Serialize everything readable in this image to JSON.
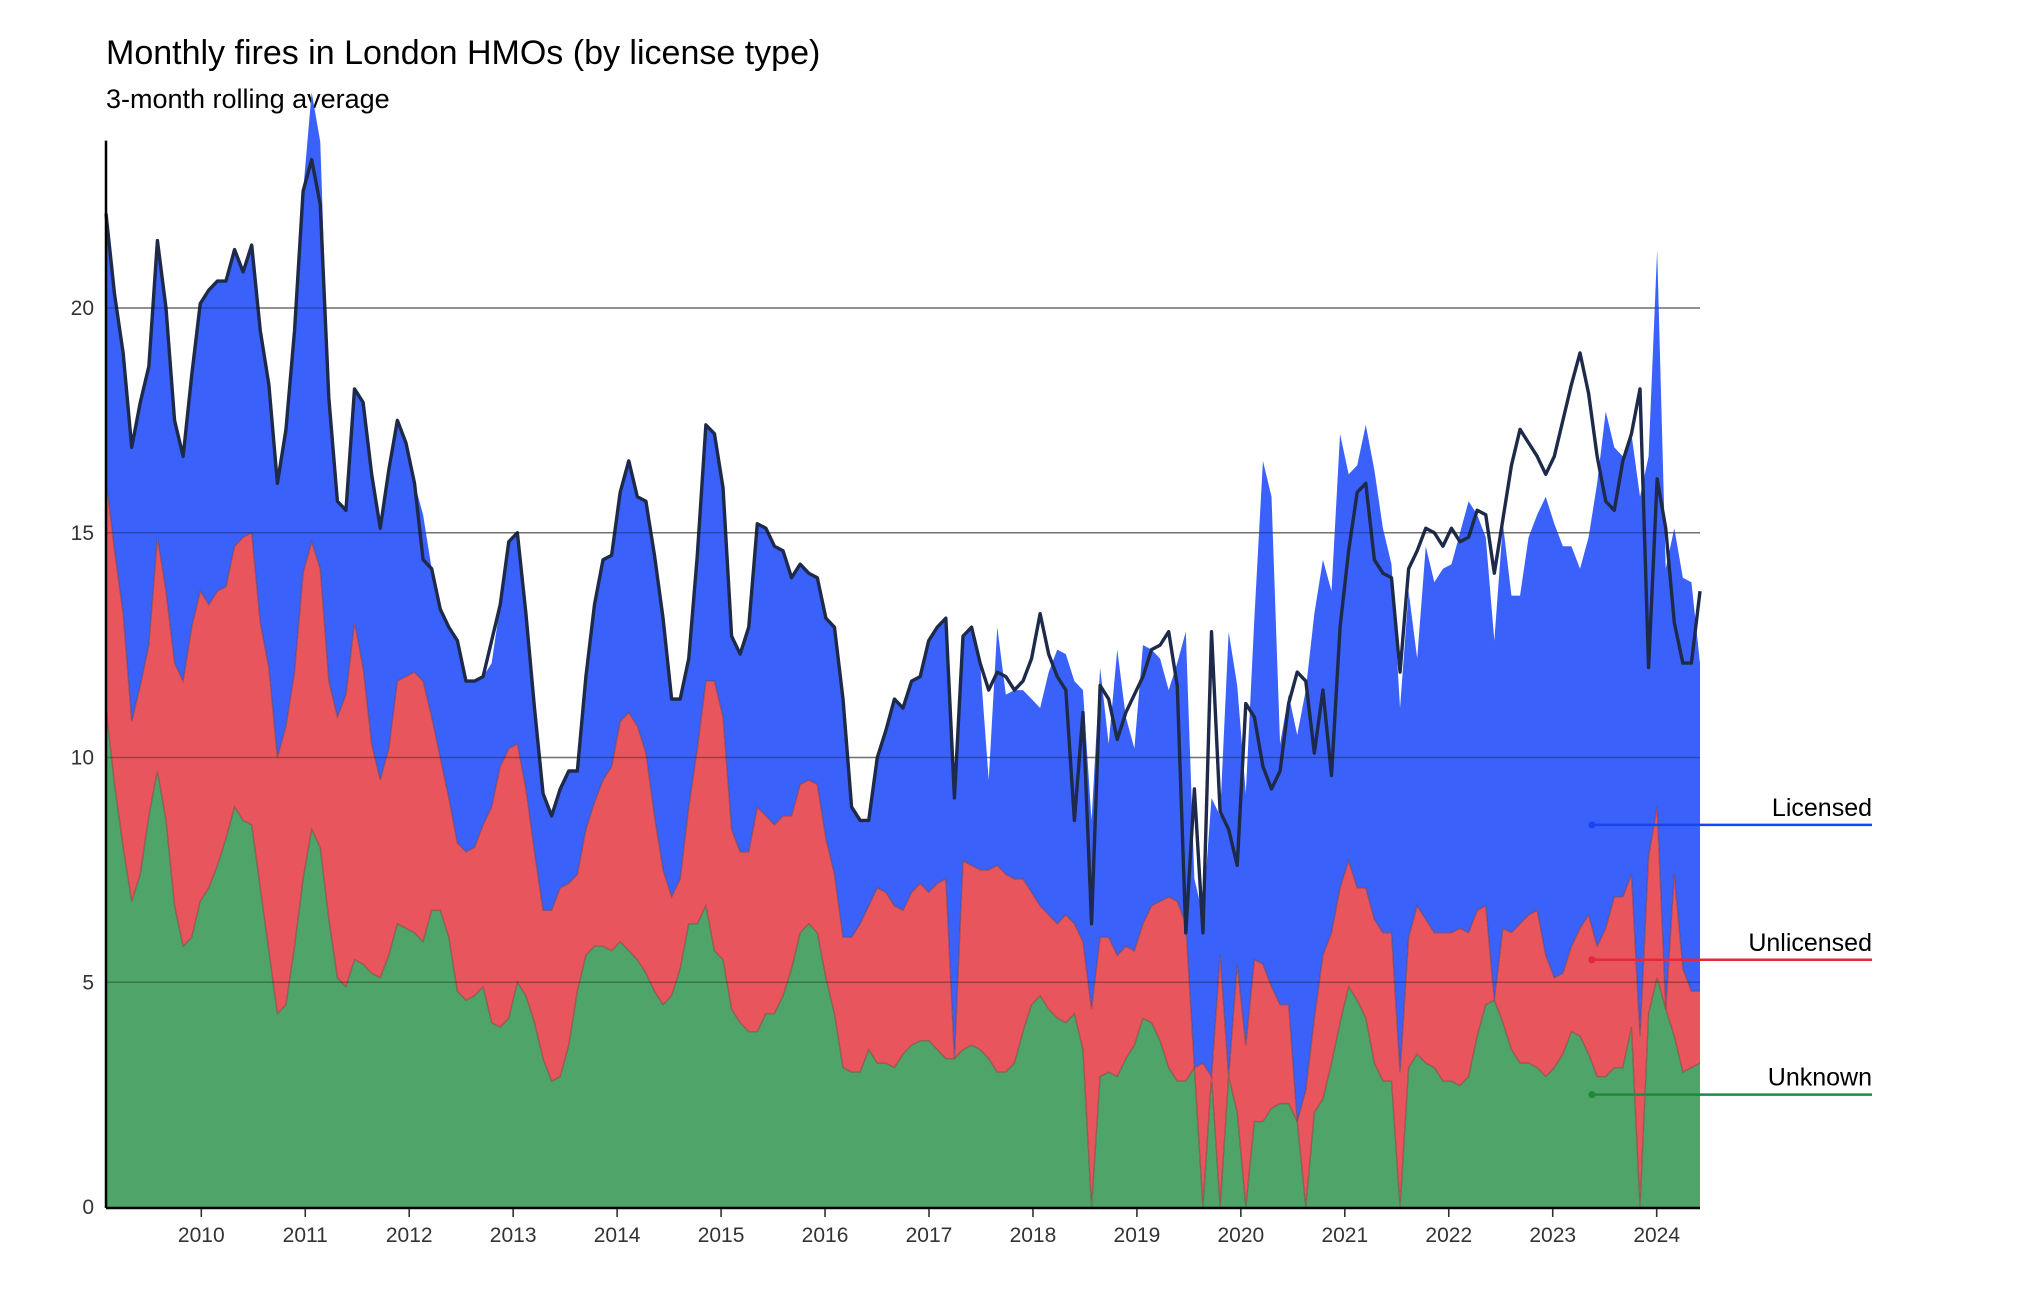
{
  "chart_data": {
    "type": "area",
    "stacked": true,
    "title": "Monthly fires in London HMOs (by license type)",
    "subtitle": "3-month rolling average",
    "xlabel": "",
    "ylabel": "",
    "x_start": "2009-02",
    "x_end": "2024-06",
    "x_ticks": [
      "2010",
      "2011",
      "2012",
      "2013",
      "2014",
      "2015",
      "2016",
      "2017",
      "2018",
      "2019",
      "2020",
      "2021",
      "2022",
      "2023",
      "2024"
    ],
    "ylim": [
      0,
      23.5
    ],
    "y_ticks": [
      0,
      5,
      10,
      15,
      20
    ],
    "grid": "horizontal",
    "legend": "direct labels at right",
    "series": [
      {
        "name": "Unknown",
        "color": "#4fa46a",
        "label_value": 2.5,
        "values": [
          11.1,
          9.4,
          8.0,
          6.8,
          7.4,
          8.7,
          9.7,
          8.6,
          6.7,
          5.8,
          6.0,
          6.8,
          7.1,
          7.6,
          8.2,
          8.9,
          8.6,
          8.5,
          7.1,
          5.7,
          4.3,
          4.5,
          5.8,
          7.3,
          8.4,
          8.0,
          6.4,
          5.1,
          4.9,
          5.5,
          5.4,
          5.2,
          5.1,
          5.6,
          6.3,
          6.2,
          6.1,
          5.9,
          6.6,
          6.6,
          6.0,
          4.8,
          4.6,
          4.7,
          4.9,
          4.1,
          4.0,
          4.2,
          5.0,
          4.7,
          4.1,
          3.3,
          2.8,
          2.9,
          3.6,
          4.8,
          5.6,
          5.8,
          5.8,
          5.7,
          5.9,
          5.7,
          5.5,
          5.2,
          4.8,
          4.5,
          4.7,
          5.3,
          6.3,
          6.3,
          6.7,
          5.7,
          5.5,
          4.4,
          4.1,
          3.9,
          3.9,
          4.3,
          4.3,
          4.7,
          5.3,
          6.1,
          6.3,
          6.1,
          5.1,
          4.3,
          3.1,
          3.0,
          3.0,
          3.5,
          3.2,
          3.2,
          3.1,
          3.4,
          3.6,
          3.7,
          3.7,
          3.5,
          3.3,
          3.3,
          3.5,
          3.6,
          3.5,
          3.3,
          3.0,
          3.0,
          3.2,
          3.9,
          4.5,
          4.7,
          4.4,
          4.2,
          4.1,
          4.3,
          3.5,
          0.0,
          2.9,
          3.0,
          2.9,
          3.3,
          3.6,
          4.2,
          4.1,
          3.7,
          3.1,
          2.8,
          2.8,
          3.1,
          0.0,
          2.9,
          0.0,
          2.9,
          2.1,
          0.0,
          1.9,
          1.9,
          2.2,
          2.3,
          2.3,
          1.9,
          0.0,
          2.1,
          2.4,
          3.2,
          4.1,
          4.9,
          4.6,
          4.2,
          3.2,
          2.8,
          2.8,
          0.0,
          3.1,
          3.4,
          3.2,
          3.1,
          2.8,
          2.8,
          2.7,
          2.9,
          3.8,
          4.5,
          4.6,
          4.1,
          3.5,
          3.2,
          3.2,
          3.1,
          2.9,
          3.1,
          3.4,
          3.9,
          3.8,
          3.4,
          2.9,
          2.9,
          3.1,
          3.1,
          4.0,
          0.0,
          4.3,
          5.1,
          4.4,
          3.8,
          3.0,
          3.1,
          3.2
        ]
      },
      {
        "name": "Unlicensed",
        "color": "#e8555c",
        "label_value": 5.5,
        "values": [
          5.1,
          5.2,
          5.2,
          4.0,
          4.2,
          3.8,
          5.2,
          5.1,
          5.4,
          5.9,
          6.9,
          6.9,
          6.3,
          6.1,
          5.6,
          5.8,
          6.3,
          6.5,
          5.9,
          6.3,
          5.7,
          6.2,
          6.1,
          6.8,
          6.4,
          6.2,
          5.3,
          5.8,
          6.5,
          7.5,
          6.6,
          5.1,
          4.4,
          4.6,
          5.4,
          5.6,
          5.8,
          5.8,
          4.3,
          3.4,
          3.1,
          3.3,
          3.3,
          3.3,
          3.6,
          4.8,
          5.8,
          6.0,
          5.3,
          4.6,
          3.8,
          3.3,
          3.8,
          4.2,
          3.6,
          2.6,
          2.8,
          3.2,
          3.7,
          4.1,
          4.9,
          5.3,
          5.2,
          4.9,
          3.9,
          3.0,
          2.2,
          2.0,
          2.6,
          3.9,
          5.0,
          6.0,
          5.4,
          4.0,
          3.8,
          4.0,
          5.0,
          4.4,
          4.2,
          4.0,
          3.4,
          3.3,
          3.2,
          3.3,
          3.1,
          3.1,
          2.9,
          3.0,
          3.3,
          3.2,
          3.9,
          3.8,
          3.6,
          3.2,
          3.4,
          3.5,
          3.3,
          3.7,
          4.0,
          0.0,
          4.2,
          4.0,
          4.0,
          4.2,
          4.6,
          4.4,
          4.1,
          3.4,
          2.5,
          2.0,
          2.1,
          2.1,
          2.4,
          2.0,
          2.4,
          4.4,
          3.1,
          3.0,
          2.7,
          2.5,
          2.1,
          2.1,
          2.6,
          3.1,
          3.8,
          4.0,
          3.5,
          0.0,
          3.2,
          0.0,
          5.6,
          0.0,
          3.3,
          3.6,
          3.6,
          3.5,
          2.7,
          2.2,
          2.2,
          0.0,
          2.6,
          2.1,
          3.2,
          2.9,
          3.0,
          2.8,
          2.5,
          2.9,
          3.2,
          3.3,
          3.3,
          3.0,
          2.9,
          3.3,
          3.2,
          3.0,
          3.3,
          3.3,
          3.5,
          3.2,
          2.8,
          2.2,
          0.0,
          2.1,
          2.6,
          3.1,
          3.3,
          3.5,
          2.7,
          2.0,
          1.8,
          1.9,
          2.4,
          3.1,
          2.9,
          3.3,
          3.8,
          3.8,
          3.4,
          3.8,
          3.5,
          3.8,
          0.0,
          3.6,
          2.3,
          1.7,
          1.6,
          1.5,
          1.8,
          2.6
        ]
      },
      {
        "name": "Licensed",
        "color": "#3a62fa",
        "label_value": 8.5,
        "values": [
          5.9,
          5.7,
          5.8,
          6.1,
          6.3,
          6.2,
          6.6,
          6.3,
          5.4,
          5.0,
          5.6,
          6.4,
          7.0,
          6.9,
          6.8,
          6.6,
          5.9,
          6.4,
          6.5,
          6.3,
          6.1,
          6.6,
          7.6,
          8.5,
          10.0,
          9.5,
          6.3,
          4.8,
          4.1,
          5.2,
          5.9,
          6.0,
          5.6,
          6.2,
          5.8,
          5.2,
          4.2,
          3.7,
          3.3,
          3.3,
          3.8,
          4.5,
          3.8,
          3.7,
          3.3,
          3.2,
          3.6,
          4.6,
          4.7,
          3.9,
          3.2,
          2.6,
          2.1,
          2.2,
          2.5,
          2.3,
          3.4,
          4.4,
          4.9,
          4.7,
          5.1,
          5.6,
          5.1,
          5.6,
          5.8,
          5.6,
          4.4,
          4.0,
          3.3,
          4.3,
          5.7,
          5.5,
          5.1,
          4.3,
          4.4,
          5.0,
          6.3,
          6.4,
          6.2,
          5.9,
          5.3,
          4.9,
          4.6,
          4.6,
          4.9,
          5.5,
          5.3,
          2.9,
          2.3,
          1.9,
          2.9,
          3.6,
          4.6,
          4.5,
          4.7,
          4.6,
          5.6,
          5.7,
          5.8,
          5.8,
          5.0,
          5.3,
          4.6,
          2.0,
          5.3,
          4.0,
          4.2,
          4.2,
          4.3,
          4.4,
          5.4,
          6.1,
          5.8,
          5.4,
          5.6,
          4.2,
          6.0,
          4.3,
          6.8,
          5.1,
          4.5,
          6.2,
          5.7,
          5.4,
          4.6,
          5.3,
          6.5,
          4.2,
          3.3,
          6.2,
          3.1,
          9.9,
          6.2,
          5.6,
          7.6,
          11.2,
          10.9,
          5.8,
          6.9,
          8.6,
          8.9,
          9.0,
          8.8,
          7.6,
          10.1,
          8.6,
          9.4,
          10.3,
          10.0,
          9.0,
          8.2,
          8.1,
          7.7,
          5.5,
          8.3,
          7.8,
          8.1,
          8.2,
          8.8,
          9.6,
          8.8,
          8.2,
          8.0,
          9.0,
          7.5,
          7.3,
          8.4,
          8.8,
          10.2,
          10.1,
          9.5,
          8.9,
          8.0,
          8.4,
          10.3,
          11.5,
          10.0,
          9.8,
          9.8,
          12.0,
          8.9,
          12.4,
          9.8,
          7.7,
          8.7,
          9.1,
          7.3,
          6.6,
          11.5,
          5.1,
          9.1,
          7.1,
          8.8,
          7.2,
          6.0,
          6.6,
          10.9
        ]
      }
    ],
    "totals": [
      22.1,
      20.3,
      19.0,
      16.9,
      17.9,
      18.7,
      21.5,
      20.0,
      17.5,
      16.7,
      18.5,
      20.1,
      20.4,
      20.6,
      20.6,
      21.3,
      20.8,
      21.4,
      19.5,
      18.3,
      16.1,
      17.3,
      19.5,
      22.6,
      23.3,
      22.3,
      18.0,
      15.7,
      15.5,
      18.2,
      17.9,
      16.3,
      15.1,
      16.4,
      17.5,
      17.0,
      16.1,
      14.4,
      14.2,
      13.3,
      12.9,
      12.6,
      11.7,
      11.7,
      11.8,
      12.6,
      13.4,
      14.8,
      15.0,
      13.2,
      11.1,
      9.2,
      8.7,
      9.3,
      9.7,
      9.7,
      11.8,
      13.4,
      14.4,
      14.5,
      15.9,
      16.6,
      15.8,
      15.7,
      14.5,
      13.1,
      11.3,
      11.3,
      12.2,
      14.5,
      17.4,
      17.2,
      16.0,
      12.7,
      12.3,
      12.9,
      15.2,
      15.1,
      14.7,
      14.6,
      14.0,
      14.3,
      14.1,
      14.0,
      13.1,
      12.9,
      11.3,
      8.9,
      8.6,
      8.6,
      10.0,
      10.6,
      11.3,
      11.1,
      11.7,
      11.8,
      12.6,
      12.9,
      13.1,
      9.1,
      12.7,
      12.9,
      12.1,
      11.5,
      11.9,
      11.8,
      11.5,
      11.7,
      12.2,
      13.2,
      12.3,
      11.8,
      11.5,
      8.6,
      11.0,
      6.3,
      11.6,
      11.3,
      10.4,
      11.0,
      11.4,
      11.8,
      12.4,
      12.5,
      12.8,
      11.6,
      6.1,
      9.3,
      6.1,
      12.8,
      8.8,
      8.4,
      7.6,
      11.2,
      10.9,
      9.8,
      9.3,
      9.7,
      11.2,
      11.9,
      11.7,
      10.1,
      11.5,
      9.6,
      12.9,
      14.6,
      15.9,
      16.1,
      14.4,
      14.1,
      14.0,
      11.9,
      14.2,
      14.6,
      15.1,
      15.0,
      14.7,
      15.1,
      14.8,
      14.9,
      15.5,
      15.4,
      14.1,
      15.3,
      16.5,
      17.3,
      17.0,
      16.7,
      16.3,
      16.7,
      17.5,
      18.3,
      19.0,
      18.1,
      16.7,
      15.7,
      15.5,
      16.6,
      17.2,
      18.2,
      12.0,
      16.2,
      15.1,
      13.0,
      12.1,
      12.1,
      13.7,
      16.7
    ]
  }
}
